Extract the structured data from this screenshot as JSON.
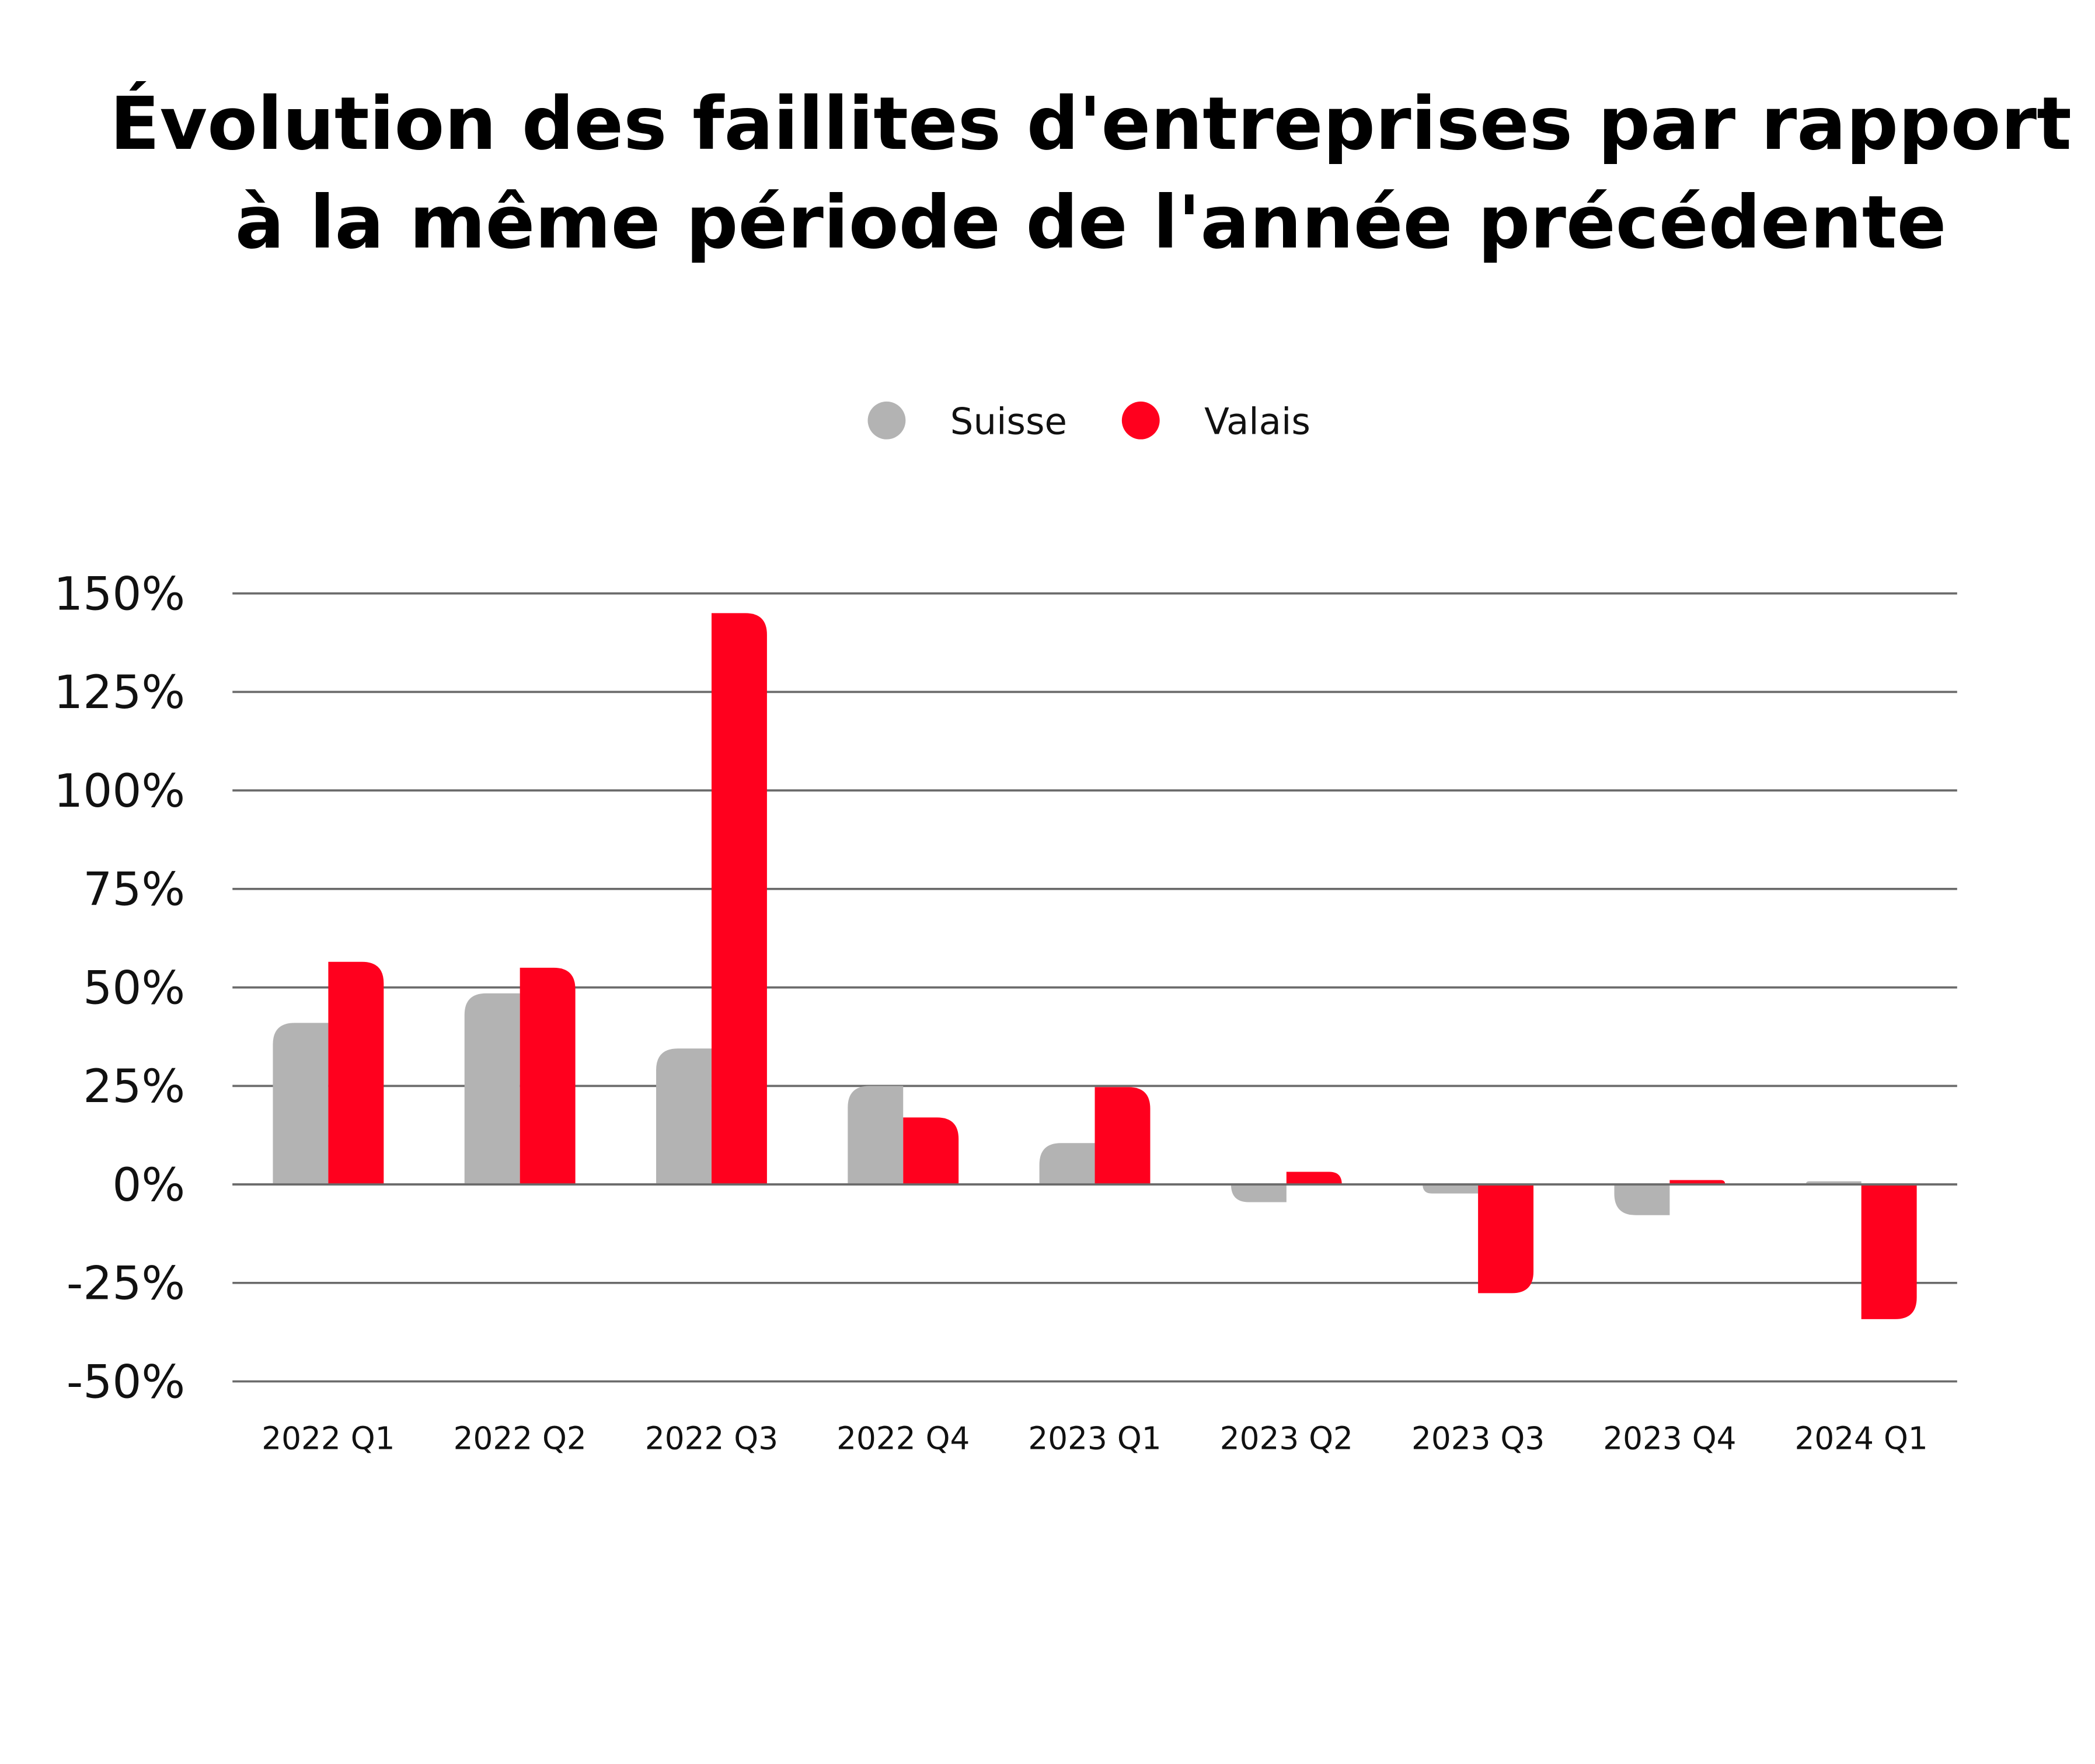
{
  "chart_data": {
    "type": "bar",
    "title": [
      "Évolution des faillites d'entreprises par rapport",
      "à la même période de l'année précédente"
    ],
    "categories": [
      "2022 Q1",
      "2022 Q2",
      "2022 Q3",
      "2022 Q4",
      "2023 Q1",
      "2023 Q2",
      "2023 Q3",
      "2023 Q4",
      "2024 Q1"
    ],
    "series": [
      {
        "name": "Suisse",
        "color": "#b3b3b3",
        "values": [
          41,
          48.5,
          34.5,
          25,
          10.5,
          -4.5,
          -2.3,
          -7.8,
          0.8
        ]
      },
      {
        "name": "Valais",
        "color": "#ff001e",
        "values": [
          56.5,
          55,
          145,
          17,
          24.7,
          3.2,
          -27.6,
          1.1,
          -34.2
        ]
      }
    ],
    "ylim": [
      -50,
      150
    ],
    "yticks": [
      150,
      125,
      100,
      75,
      50,
      25,
      0,
      -25,
      -50
    ],
    "ytick_labels": [
      "150%",
      "125%",
      "100%",
      "75%",
      "50%",
      "25%",
      "0%",
      "-25%",
      "-50%"
    ],
    "xlabel": "",
    "ylabel": "",
    "grid": true,
    "grid_color": "#6b6b6b",
    "legend_position": "top-center"
  }
}
